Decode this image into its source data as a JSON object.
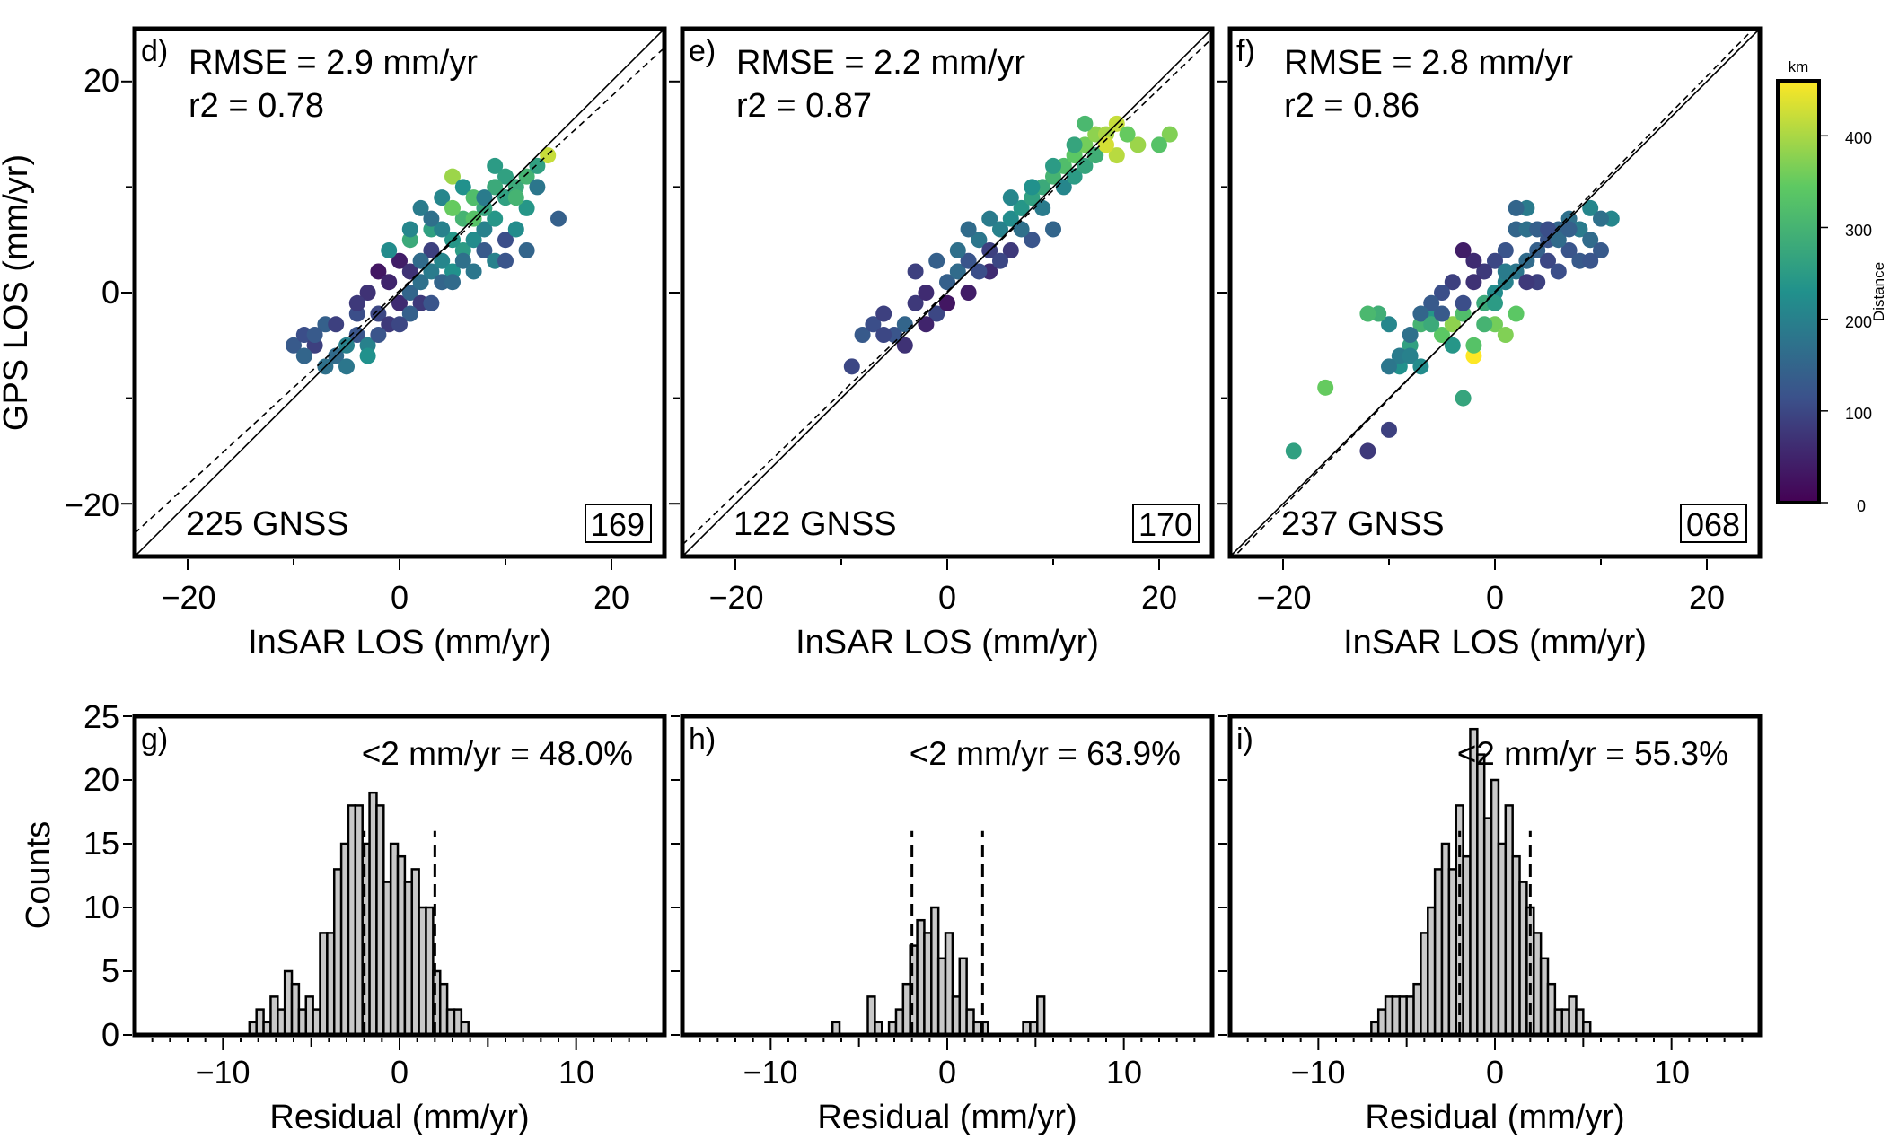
{
  "colors": {
    "frame": "#000000",
    "bar_fill": "#c8c8c8",
    "background": "#ffffff"
  },
  "colorbar": {
    "unit": "km",
    "label": "Distance",
    "ticks": [
      "0",
      "100",
      "200",
      "300",
      "400"
    ],
    "range": [
      0,
      460
    ],
    "colormap": [
      "#440154",
      "#3b528b",
      "#21918c",
      "#5ec962",
      "#fde725"
    ]
  },
  "chart_data": [
    {
      "type": "scatter",
      "panel": "d)",
      "rmse_text": "RMSE = 2.9 mm/yr",
      "r2_text": "r2 = 0.78",
      "count_text": "225 GNSS",
      "track": "169",
      "xlabel": "InSAR LOS (mm/yr)",
      "ylabel": "GPS LOS (mm/yr)",
      "xlim": [
        -25,
        25
      ],
      "ylim": [
        -25,
        25
      ],
      "xticks": [
        "−20",
        "0",
        "20"
      ],
      "yticks": [
        "−20",
        "0",
        "20"
      ],
      "fit_line": {
        "slope": 0.92,
        "intercept": 0.2
      },
      "points": [
        [
          -10,
          -5,
          130
        ],
        [
          -9,
          -4,
          110
        ],
        [
          -8,
          -5,
          90
        ],
        [
          -7,
          -3,
          140
        ],
        [
          -6,
          -6,
          160
        ],
        [
          -5,
          -7,
          180
        ],
        [
          -4,
          -4,
          120
        ],
        [
          -3,
          -5,
          200
        ],
        [
          -2,
          -2,
          100
        ],
        [
          -1,
          -3,
          80
        ],
        [
          0,
          -1,
          60
        ],
        [
          1,
          0,
          150
        ],
        [
          2,
          1,
          170
        ],
        [
          3,
          2,
          190
        ],
        [
          4,
          3,
          210
        ],
        [
          5,
          2,
          230
        ],
        [
          6,
          4,
          250
        ],
        [
          7,
          5,
          220
        ],
        [
          8,
          6,
          200
        ],
        [
          9,
          7,
          240
        ],
        [
          10,
          9,
          260
        ],
        [
          11,
          10,
          280
        ],
        [
          12,
          11,
          300
        ],
        [
          5,
          11,
          390
        ],
        [
          9,
          12,
          250
        ],
        [
          13,
          10,
          180
        ],
        [
          15,
          7,
          140
        ],
        [
          14,
          13,
          420
        ],
        [
          10,
          5,
          110
        ],
        [
          8,
          4,
          130
        ],
        [
          6,
          3,
          170
        ],
        [
          4,
          1,
          150
        ],
        [
          2,
          -1,
          80
        ],
        [
          0,
          3,
          40
        ],
        [
          -2,
          2,
          30
        ],
        [
          -3,
          0,
          70
        ],
        [
          -4,
          -2,
          110
        ],
        [
          -6,
          -3,
          90
        ],
        [
          -8,
          -4,
          130
        ],
        [
          -9,
          -6,
          150
        ],
        [
          -5,
          -5,
          200
        ],
        [
          -3,
          -6,
          230
        ],
        [
          1,
          -2,
          140
        ],
        [
          3,
          -1,
          120
        ],
        [
          5,
          1,
          160
        ],
        [
          7,
          2,
          180
        ],
        [
          9,
          3,
          200
        ],
        [
          11,
          6,
          220
        ],
        [
          12,
          8,
          240
        ],
        [
          3,
          6,
          260
        ],
        [
          1,
          5,
          280
        ],
        [
          -1,
          4,
          220
        ],
        [
          2,
          8,
          190
        ],
        [
          4,
          9,
          210
        ],
        [
          6,
          10,
          230
        ],
        [
          8,
          8,
          270
        ],
        [
          10,
          11,
          260
        ],
        [
          12,
          4,
          150
        ],
        [
          -7,
          -7,
          170
        ],
        [
          -1,
          1,
          50
        ],
        [
          1,
          2,
          70
        ],
        [
          3,
          4,
          90
        ],
        [
          0,
          -3,
          100
        ],
        [
          -2,
          -4,
          120
        ],
        [
          6,
          7,
          300
        ],
        [
          7,
          9,
          320
        ],
        [
          9,
          10,
          280
        ],
        [
          5,
          5,
          240
        ],
        [
          2,
          3,
          160
        ],
        [
          -4,
          -1,
          80
        ],
        [
          4,
          6,
          200
        ],
        [
          3,
          7,
          170
        ],
        [
          8,
          9,
          190
        ],
        [
          11,
          9,
          300
        ],
        [
          10,
          3,
          120
        ],
        [
          5,
          8,
          350
        ],
        [
          7,
          7,
          330
        ],
        [
          13,
          12,
          260
        ],
        [
          1,
          6,
          210
        ]
      ]
    },
    {
      "type": "scatter",
      "panel": "e)",
      "rmse_text": "RMSE = 2.2 mm/yr",
      "r2_text": "r2 = 0.87",
      "count_text": "122 GNSS",
      "track": "170",
      "xlabel": "InSAR LOS (mm/yr)",
      "ylabel": "",
      "xlim": [
        -25,
        25
      ],
      "ylim": [
        -25,
        25
      ],
      "xticks": [
        "−20",
        "0",
        "20"
      ],
      "yticks": [
        "−20",
        "0",
        "20"
      ],
      "fit_line": {
        "slope": 0.96,
        "intercept": 0.1
      },
      "points": [
        [
          -9,
          -7,
          100
        ],
        [
          -8,
          -4,
          130
        ],
        [
          -7,
          -3,
          110
        ],
        [
          -6,
          -2,
          90
        ],
        [
          -5,
          -4,
          120
        ],
        [
          -4,
          -3,
          150
        ],
        [
          -3,
          -1,
          80
        ],
        [
          -2,
          0,
          60
        ],
        [
          -1,
          -2,
          100
        ],
        [
          0,
          1,
          140
        ],
        [
          1,
          2,
          160
        ],
        [
          2,
          3,
          120
        ],
        [
          3,
          5,
          180
        ],
        [
          4,
          4,
          90
        ],
        [
          5,
          6,
          200
        ],
        [
          6,
          7,
          220
        ],
        [
          7,
          8,
          240
        ],
        [
          8,
          9,
          260
        ],
        [
          9,
          10,
          280
        ],
        [
          10,
          11,
          300
        ],
        [
          11,
          12,
          320
        ],
        [
          12,
          13,
          340
        ],
        [
          13,
          14,
          360
        ],
        [
          14,
          15,
          380
        ],
        [
          15,
          15,
          400
        ],
        [
          16,
          16,
          420
        ],
        [
          16,
          13,
          410
        ],
        [
          18,
          14,
          390
        ],
        [
          21,
          15,
          370
        ],
        [
          20,
          14,
          330
        ],
        [
          10,
          6,
          150
        ],
        [
          8,
          5,
          120
        ],
        [
          6,
          4,
          80
        ],
        [
          4,
          2,
          60
        ],
        [
          2,
          0,
          40
        ],
        [
          0,
          -1,
          30
        ],
        [
          -2,
          -3,
          50
        ],
        [
          -4,
          -5,
          70
        ],
        [
          -6,
          -4,
          100
        ],
        [
          3,
          2,
          110
        ],
        [
          5,
          3,
          100
        ],
        [
          7,
          6,
          170
        ],
        [
          9,
          8,
          190
        ],
        [
          11,
          10,
          210
        ],
        [
          12,
          11,
          250
        ],
        [
          13,
          12,
          270
        ],
        [
          -3,
          2,
          90
        ],
        [
          -1,
          3,
          140
        ],
        [
          1,
          4,
          170
        ],
        [
          2,
          6,
          160
        ],
        [
          4,
          7,
          190
        ],
        [
          6,
          9,
          210
        ],
        [
          8,
          10,
          230
        ],
        [
          10,
          12,
          250
        ],
        [
          12,
          14,
          270
        ],
        [
          14,
          13,
          290
        ],
        [
          13,
          16,
          310
        ],
        [
          15,
          14,
          430
        ],
        [
          17,
          15,
          350
        ]
      ]
    },
    {
      "type": "scatter",
      "panel": "f)",
      "rmse_text": "RMSE = 2.8 mm/yr",
      "r2_text": "r2 = 0.86",
      "count_text": "237 GNSS",
      "track": "068",
      "xlabel": "InSAR LOS (mm/yr)",
      "ylabel": "",
      "xlim": [
        -25,
        25
      ],
      "ylim": [
        -25,
        25
      ],
      "xticks": [
        "−20",
        "0",
        "20"
      ],
      "yticks": [
        "−20",
        "0",
        "20"
      ],
      "fit_line": {
        "slope": 1.02,
        "intercept": 0.1
      },
      "points": [
        [
          -19,
          -15,
          260
        ],
        [
          -16,
          -9,
          350
        ],
        [
          -12,
          -15,
          80
        ],
        [
          -10,
          -13,
          90
        ],
        [
          -9,
          -7,
          230
        ],
        [
          -8,
          -5,
          260
        ],
        [
          -7,
          -3,
          300
        ],
        [
          -6,
          -2,
          240
        ],
        [
          -5,
          -4,
          340
        ],
        [
          -4,
          -3,
          380
        ],
        [
          -3,
          -2,
          320
        ],
        [
          -2,
          -6,
          460
        ],
        [
          -1,
          -1,
          280
        ],
        [
          0,
          0,
          220
        ],
        [
          1,
          1,
          200
        ],
        [
          2,
          2,
          180
        ],
        [
          3,
          3,
          160
        ],
        [
          4,
          4,
          140
        ],
        [
          5,
          5,
          120
        ],
        [
          6,
          6,
          150
        ],
        [
          7,
          7,
          170
        ],
        [
          8,
          6,
          190
        ],
        [
          9,
          5,
          160
        ],
        [
          10,
          4,
          130
        ],
        [
          11,
          7,
          210
        ],
        [
          3,
          8,
          190
        ],
        [
          2,
          6,
          150
        ],
        [
          1,
          4,
          120
        ],
        [
          0,
          3,
          100
        ],
        [
          -1,
          2,
          80
        ],
        [
          -2,
          3,
          60
        ],
        [
          -3,
          4,
          40
        ],
        [
          -4,
          1,
          90
        ],
        [
          -5,
          0,
          110
        ],
        [
          -6,
          -1,
          130
        ],
        [
          -7,
          -2,
          150
        ],
        [
          -8,
          -4,
          170
        ],
        [
          -9,
          -6,
          190
        ],
        [
          -10,
          -3,
          210
        ],
        [
          -3,
          -10,
          270
        ],
        [
          -2,
          -5,
          330
        ],
        [
          0,
          -3,
          360
        ],
        [
          1,
          -4,
          370
        ],
        [
          2,
          -2,
          340
        ],
        [
          4,
          1,
          90
        ],
        [
          5,
          3,
          100
        ],
        [
          6,
          2,
          110
        ],
        [
          7,
          4,
          120
        ],
        [
          8,
          3,
          130
        ],
        [
          9,
          8,
          210
        ],
        [
          2,
          8,
          150
        ],
        [
          3,
          6,
          170
        ],
        [
          -4,
          -5,
          240
        ],
        [
          -6,
          -3,
          280
        ],
        [
          -1,
          -3,
          300
        ],
        [
          0,
          -1,
          250
        ],
        [
          1,
          2,
          190
        ],
        [
          4,
          6,
          140
        ],
        [
          6,
          5,
          160
        ],
        [
          -2,
          1,
          70
        ],
        [
          -3,
          -1,
          110
        ],
        [
          -5,
          -2,
          130
        ],
        [
          -8,
          -6,
          200
        ],
        [
          -7,
          -7,
          220
        ],
        [
          3,
          1,
          80
        ],
        [
          5,
          6,
          110
        ],
        [
          7,
          6,
          140
        ],
        [
          9,
          3,
          120
        ],
        [
          10,
          7,
          170
        ],
        [
          -11,
          -2,
          290
        ],
        [
          -12,
          -2,
          310
        ],
        [
          -10,
          -7,
          180
        ]
      ]
    },
    {
      "type": "bar",
      "panel": "g)",
      "stat_text": "<2 mm/yr = 48.0%",
      "xlabel": "Residual (mm/yr)",
      "ylabel": "Counts",
      "xlim": [
        -15,
        15
      ],
      "ylim": [
        0,
        25
      ],
      "xticks": [
        "−10",
        "0",
        "10"
      ],
      "yticks": [
        "0",
        "5",
        "10",
        "15",
        "20",
        "25"
      ],
      "bin_start": -8.5,
      "bin_width": 0.4,
      "threshold_lines": [
        -2,
        2
      ],
      "values": [
        1,
        2,
        1,
        3,
        2,
        5,
        4,
        2,
        3,
        2,
        8,
        8,
        13,
        15,
        18,
        18,
        15,
        19,
        18,
        12,
        15,
        14,
        12,
        13,
        10,
        10,
        5,
        4,
        2,
        2,
        1
      ]
    },
    {
      "type": "bar",
      "panel": "h)",
      "stat_text": "<2 mm/yr = 63.9%",
      "xlabel": "Residual (mm/yr)",
      "ylabel": "",
      "xlim": [
        -15,
        15
      ],
      "ylim": [
        0,
        25
      ],
      "xticks": [
        "−10",
        "0",
        "10"
      ],
      "yticks": [
        "0",
        "5",
        "10",
        "15",
        "20",
        "25"
      ],
      "bin_start": -6.5,
      "bin_width": 0.4,
      "threshold_lines": [
        -2,
        2
      ],
      "values": [
        1,
        0,
        0,
        0,
        0,
        3,
        1,
        0,
        1,
        2,
        4,
        7,
        9,
        8,
        10,
        6,
        8,
        3,
        6,
        2,
        1,
        1,
        0,
        0,
        0,
        0,
        0,
        0,
        0,
        0,
        0
      ],
      "extra_bins": [
        [
          4.3,
          1
        ],
        [
          4.7,
          1
        ],
        [
          5.1,
          3
        ]
      ]
    },
    {
      "type": "bar",
      "panel": "i)",
      "stat_text": "<2 mm/yr = 55.3%",
      "xlabel": "Residual (mm/yr)",
      "ylabel": "",
      "xlim": [
        -15,
        15
      ],
      "ylim": [
        0,
        25
      ],
      "xticks": [
        "−10",
        "0",
        "10"
      ],
      "yticks": [
        "0",
        "5",
        "10",
        "15",
        "20",
        "25"
      ],
      "bin_start": -7.0,
      "bin_width": 0.4,
      "threshold_lines": [
        -2,
        2
      ],
      "values": [
        1,
        2,
        3,
        3,
        3,
        3,
        4,
        8,
        10,
        13,
        15,
        13,
        18,
        14,
        24,
        22,
        17,
        20,
        15,
        18,
        14,
        12,
        10,
        8,
        6,
        4,
        2,
        2,
        3,
        2,
        1
      ]
    }
  ]
}
